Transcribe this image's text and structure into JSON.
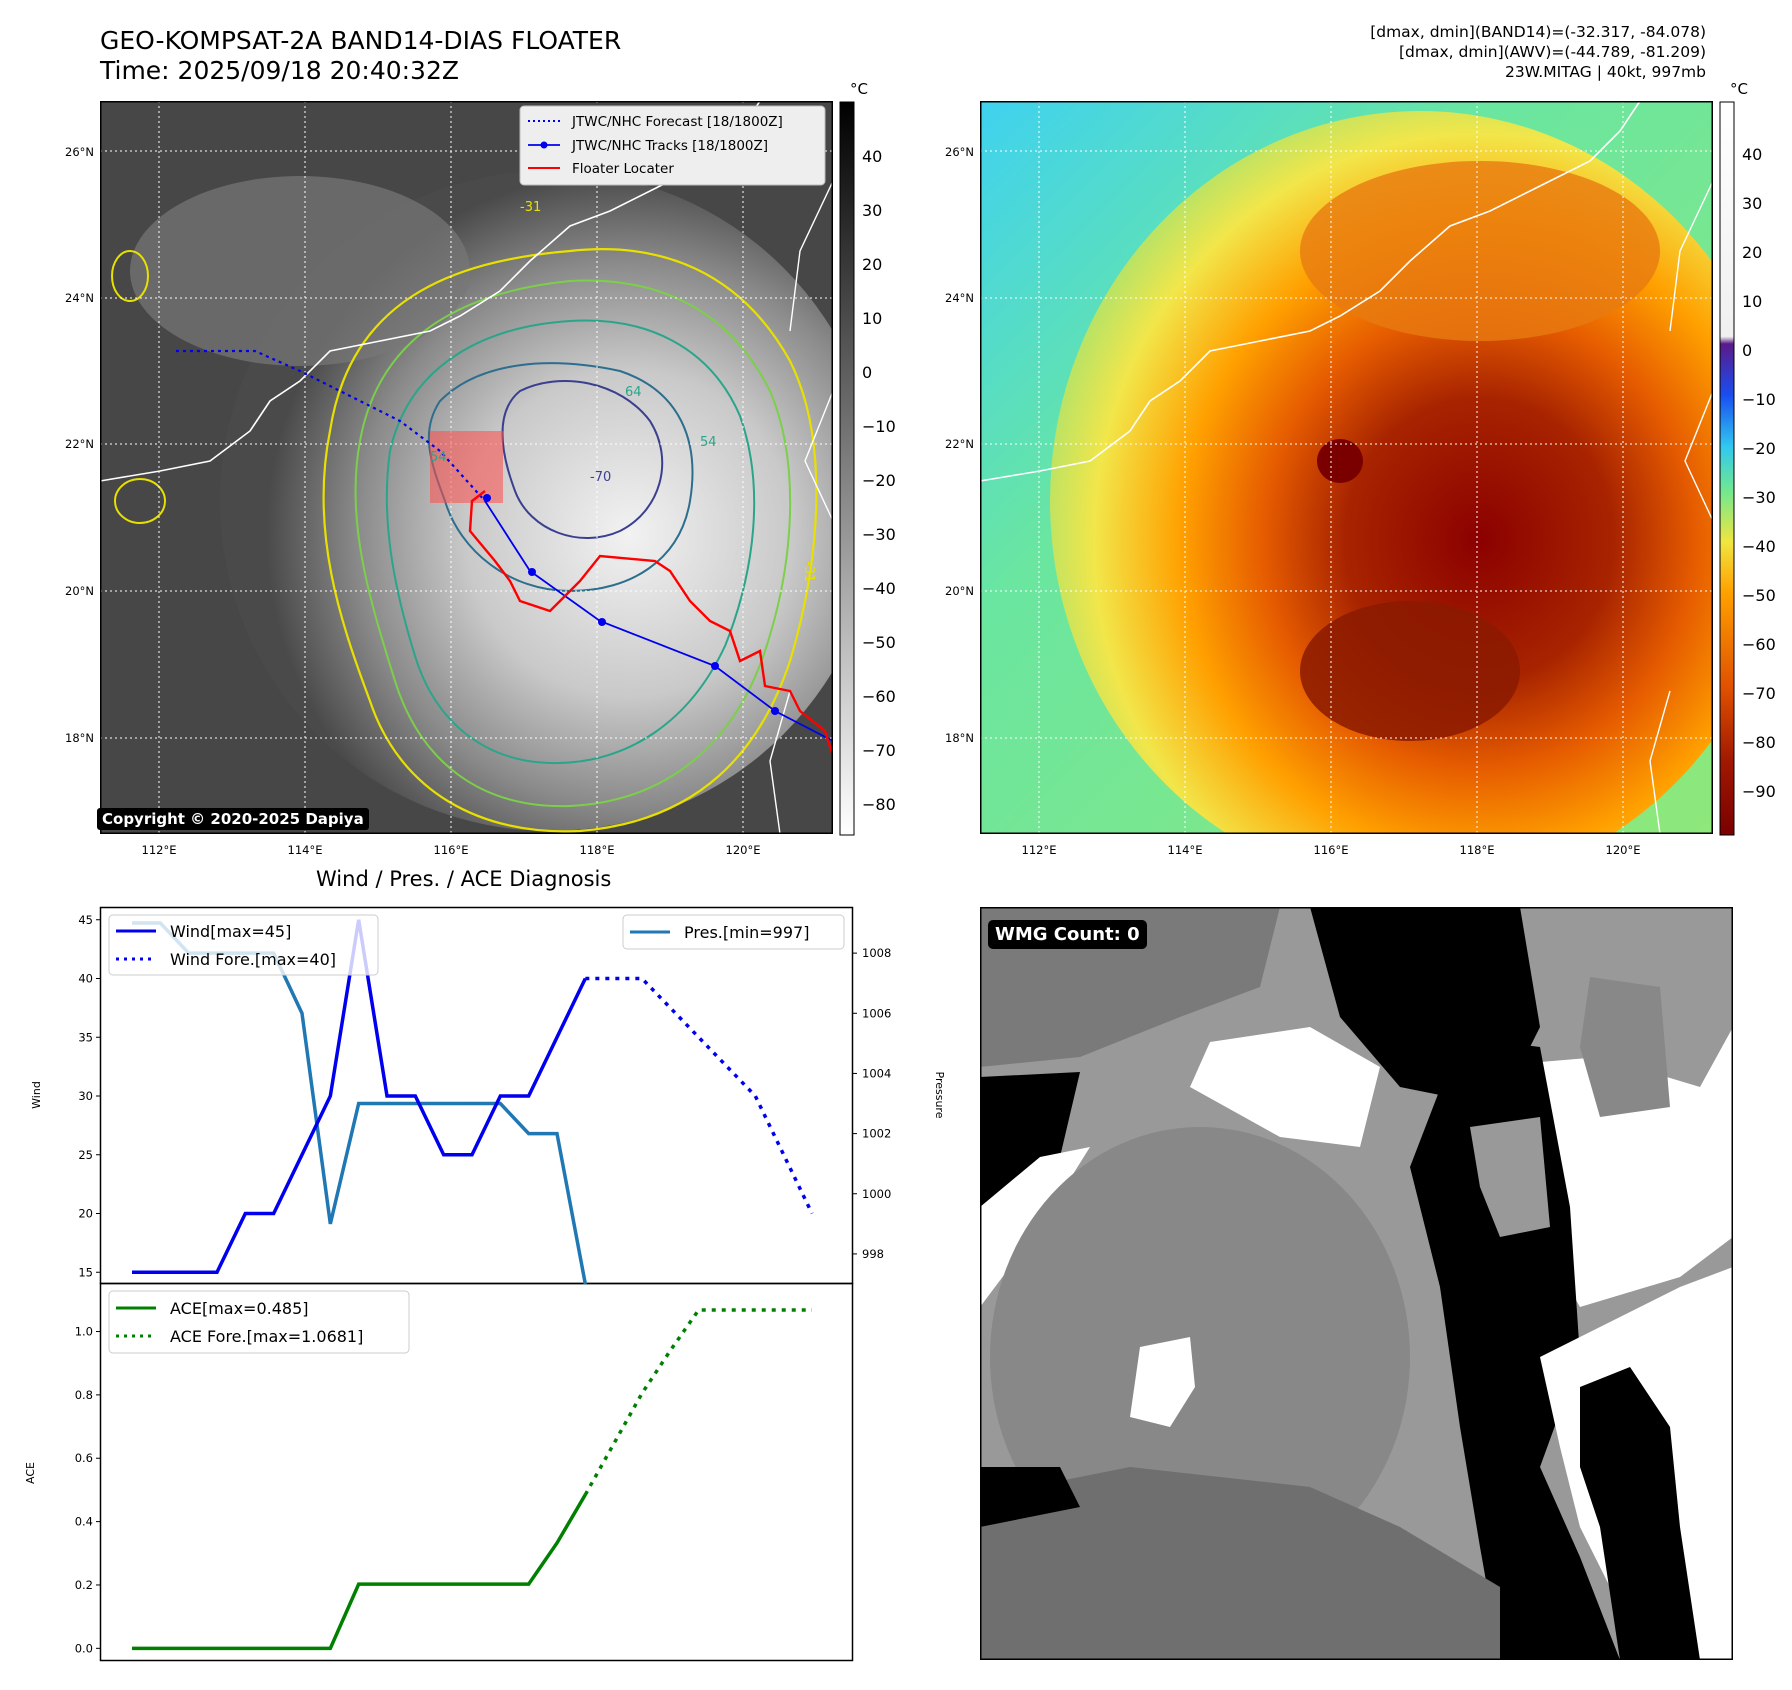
{
  "header": {
    "title_line1": "GEO-KOMPSAT-2A BAND14-DIAS FLOATER",
    "title_line2": "Time: 2025/09/18 20:40:32Z",
    "info_line1": "[dmax, dmin](BAND14)=(-32.317, -84.078)",
    "info_line2": "[dmax, dmin](AWV)=(-44.789, -81.209)",
    "info_line3": "23W.MITAG | 40kt, 997mb"
  },
  "maps": {
    "lon_ticks": [
      "112°E",
      "114°E",
      "116°E",
      "118°E",
      "120°E"
    ],
    "lat_ticks": [
      "26°N",
      "24°N",
      "22°N",
      "20°N",
      "18°N"
    ],
    "copyright": "Copyright © 2020-2025 Dapiya",
    "legend": {
      "forecast": "JTWC/NHC Forecast [18/1800Z]",
      "tracks": "JTWC/NHC Tracks [18/1800Z]",
      "floater": "Floater Locater"
    },
    "contour_labels": [
      "-31",
      "54",
      "54",
      "64",
      "-70",
      "-31"
    ]
  },
  "colorbar_left": {
    "unit": "°C",
    "ticks": [
      "40",
      "30",
      "20",
      "10",
      "0",
      "−10",
      "−20",
      "−30",
      "−40",
      "−50",
      "−60",
      "−70",
      "−80"
    ]
  },
  "colorbar_right": {
    "unit": "°C",
    "ticks": [
      "40",
      "30",
      "20",
      "10",
      "0",
      "−10",
      "−20",
      "−30",
      "−40",
      "−50",
      "−60",
      "−70",
      "−80",
      "−90"
    ]
  },
  "diagnosis": {
    "title": "Wind / Pres. / ACE Diagnosis",
    "wind_ylabel": "Wind",
    "pressure_ylabel": "Pressure",
    "ace_ylabel": "ACE",
    "legend_wind": "Wind[max=45]",
    "legend_wind_fore": "Wind Fore.[max=40]",
    "legend_pres": "Pres.[min=997]",
    "legend_ace": "ACE[max=0.485]",
    "legend_ace_fore": "ACE Fore.[max=1.0681]",
    "wmg_label": "WMG Count: 0"
  },
  "chart_data": [
    {
      "type": "line",
      "title": "Wind / Pres. / ACE Diagnosis",
      "ylabel": "Wind",
      "ylim": [
        14,
        46
      ],
      "yticks": [
        15,
        20,
        25,
        30,
        35,
        40,
        45
      ],
      "x": [
        0,
        1,
        2,
        3,
        4,
        5,
        6,
        7,
        8,
        9,
        10,
        11,
        12,
        13,
        14,
        15,
        16,
        17,
        18,
        19,
        20,
        21,
        22,
        23,
        24
      ],
      "series": [
        {
          "name": "Wind[max=45]",
          "color": "#0000ee",
          "style": "solid",
          "x": [
            0,
            3,
            4,
            5,
            7,
            8,
            9,
            10,
            11,
            12,
            13,
            14,
            15,
            16
          ],
          "values": [
            15,
            15,
            20,
            20,
            30,
            45,
            30,
            30,
            25,
            25,
            30,
            30,
            35,
            40
          ]
        },
        {
          "name": "Wind Fore.[max=40]",
          "color": "#0000ee",
          "style": "dotted",
          "x": [
            16,
            18,
            22,
            24
          ],
          "values": [
            40,
            40,
            30,
            20
          ]
        }
      ]
    },
    {
      "type": "line",
      "ylabel": "Pressure",
      "ylim": [
        997,
        1009.5
      ],
      "yticks": [
        998,
        1000,
        1002,
        1004,
        1006,
        1008
      ],
      "series": [
        {
          "name": "Pres.[min=997]",
          "color": "#1f77b4",
          "style": "solid",
          "x": [
            0,
            1,
            2,
            3,
            4,
            5,
            6,
            7,
            8,
            9,
            10,
            11,
            12,
            13,
            14,
            15,
            16
          ],
          "values": [
            1009,
            1009,
            1008,
            1008,
            1008,
            1008,
            1006,
            999,
            1003,
            1003,
            1003,
            1003,
            1003,
            1003,
            1002,
            1002,
            997
          ]
        }
      ]
    },
    {
      "type": "line",
      "ylabel": "ACE",
      "ylim": [
        -0.04,
        1.15
      ],
      "yticks": [
        0.0,
        0.2,
        0.4,
        0.6,
        0.8,
        1.0
      ],
      "series": [
        {
          "name": "ACE[max=0.485]",
          "color": "#008000",
          "style": "solid",
          "x": [
            0,
            7,
            8,
            14,
            15,
            16
          ],
          "values": [
            0,
            0,
            0.2025,
            0.2025,
            0.3325,
            0.485
          ]
        },
        {
          "name": "ACE Fore.[max=1.0681]",
          "color": "#008000",
          "style": "dotted",
          "x": [
            16,
            17,
            18,
            19,
            20,
            22,
            24
          ],
          "values": [
            0.485,
            0.645,
            0.805,
            0.94,
            1.0681,
            1.0681,
            1.0681
          ]
        }
      ]
    }
  ]
}
